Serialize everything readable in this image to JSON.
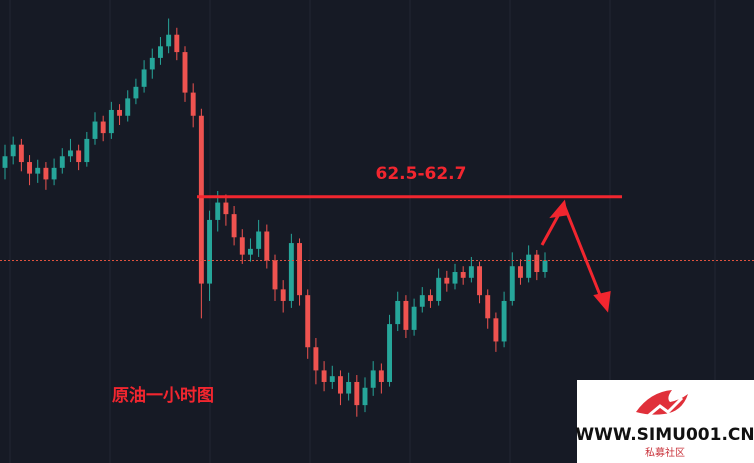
{
  "chart_data": {
    "type": "candlestick",
    "annotation": "原油一小时图",
    "ylim": [
      60.3,
      64.3
    ],
    "up_color": "#26a69a",
    "down_color": "#ef5350",
    "levels": [
      {
        "value": 62.6,
        "label": "62.5-62.7",
        "color": "#f2262f"
      }
    ],
    "ohlc": [
      [
        62.85,
        63.05,
        62.75,
        62.95
      ],
      [
        62.95,
        63.12,
        62.88,
        63.05
      ],
      [
        63.05,
        63.1,
        62.82,
        62.9
      ],
      [
        62.9,
        62.96,
        62.7,
        62.8
      ],
      [
        62.8,
        62.92,
        62.72,
        62.85
      ],
      [
        62.85,
        62.9,
        62.66,
        62.75
      ],
      [
        62.75,
        62.93,
        62.7,
        62.85
      ],
      [
        62.85,
        63.02,
        62.8,
        62.95
      ],
      [
        62.95,
        63.1,
        62.9,
        63.0
      ],
      [
        63.0,
        63.05,
        62.83,
        62.9
      ],
      [
        62.9,
        63.16,
        62.86,
        63.1
      ],
      [
        63.1,
        63.33,
        63.05,
        63.25
      ],
      [
        63.25,
        63.3,
        63.08,
        63.15
      ],
      [
        63.15,
        63.42,
        63.1,
        63.35
      ],
      [
        63.35,
        63.4,
        63.22,
        63.3
      ],
      [
        63.3,
        63.52,
        63.25,
        63.45
      ],
      [
        63.45,
        63.62,
        63.4,
        63.55
      ],
      [
        63.55,
        63.78,
        63.5,
        63.7
      ],
      [
        63.7,
        63.88,
        63.62,
        63.8
      ],
      [
        63.8,
        63.98,
        63.74,
        63.9
      ],
      [
        63.9,
        64.14,
        63.84,
        64.0
      ],
      [
        64.0,
        64.06,
        63.78,
        63.85
      ],
      [
        63.85,
        63.9,
        63.42,
        63.5
      ],
      [
        63.5,
        63.58,
        63.2,
        63.3
      ],
      [
        63.3,
        63.36,
        61.55,
        61.85
      ],
      [
        61.85,
        62.48,
        61.7,
        62.4
      ],
      [
        62.4,
        62.65,
        62.3,
        62.55
      ],
      [
        62.55,
        62.62,
        62.35,
        62.45
      ],
      [
        62.45,
        62.52,
        62.18,
        62.25
      ],
      [
        62.25,
        62.32,
        62.02,
        62.1
      ],
      [
        62.1,
        62.24,
        62.04,
        62.15
      ],
      [
        62.15,
        62.4,
        62.08,
        62.3
      ],
      [
        62.3,
        62.36,
        61.98,
        62.05
      ],
      [
        62.05,
        62.1,
        61.7,
        61.8
      ],
      [
        61.8,
        61.88,
        61.6,
        61.7
      ],
      [
        61.7,
        62.28,
        61.64,
        62.2
      ],
      [
        62.2,
        62.24,
        61.66,
        61.75
      ],
      [
        61.75,
        61.8,
        61.2,
        61.3
      ],
      [
        61.3,
        61.38,
        60.98,
        61.1
      ],
      [
        61.1,
        61.18,
        60.92,
        61.0
      ],
      [
        61.0,
        61.14,
        60.94,
        61.05
      ],
      [
        61.05,
        61.1,
        60.8,
        60.9
      ],
      [
        60.9,
        61.08,
        60.84,
        61.0
      ],
      [
        61.0,
        61.06,
        60.7,
        60.8
      ],
      [
        60.8,
        61.04,
        60.74,
        60.95
      ],
      [
        60.95,
        61.18,
        60.88,
        61.1
      ],
      [
        61.1,
        61.16,
        60.9,
        61.0
      ],
      [
        61.0,
        61.58,
        60.96,
        61.5
      ],
      [
        61.5,
        61.78,
        61.44,
        61.7
      ],
      [
        61.7,
        61.75,
        61.38,
        61.45
      ],
      [
        61.45,
        61.72,
        61.4,
        61.65
      ],
      [
        61.65,
        61.82,
        61.6,
        61.75
      ],
      [
        61.75,
        61.8,
        61.64,
        61.7
      ],
      [
        61.7,
        61.98,
        61.66,
        61.9
      ],
      [
        61.9,
        61.96,
        61.78,
        61.85
      ],
      [
        61.85,
        62.02,
        61.8,
        61.95
      ],
      [
        61.95,
        62.0,
        61.84,
        61.9
      ],
      [
        61.9,
        62.08,
        61.86,
        62.0
      ],
      [
        62.0,
        62.04,
        61.68,
        61.75
      ],
      [
        61.75,
        61.8,
        61.46,
        61.55
      ],
      [
        61.55,
        61.6,
        61.26,
        61.35
      ],
      [
        61.35,
        61.78,
        61.3,
        61.7
      ],
      [
        61.7,
        62.12,
        61.66,
        62.0
      ],
      [
        62.0,
        62.06,
        61.84,
        61.9
      ],
      [
        61.9,
        62.18,
        61.86,
        62.1
      ],
      [
        62.1,
        62.14,
        61.88,
        61.95
      ],
      [
        61.95,
        62.12,
        61.9,
        62.05
      ]
    ]
  },
  "watermark": {
    "url": "WWW.SIMU001.CN",
    "name": "私募社区"
  }
}
